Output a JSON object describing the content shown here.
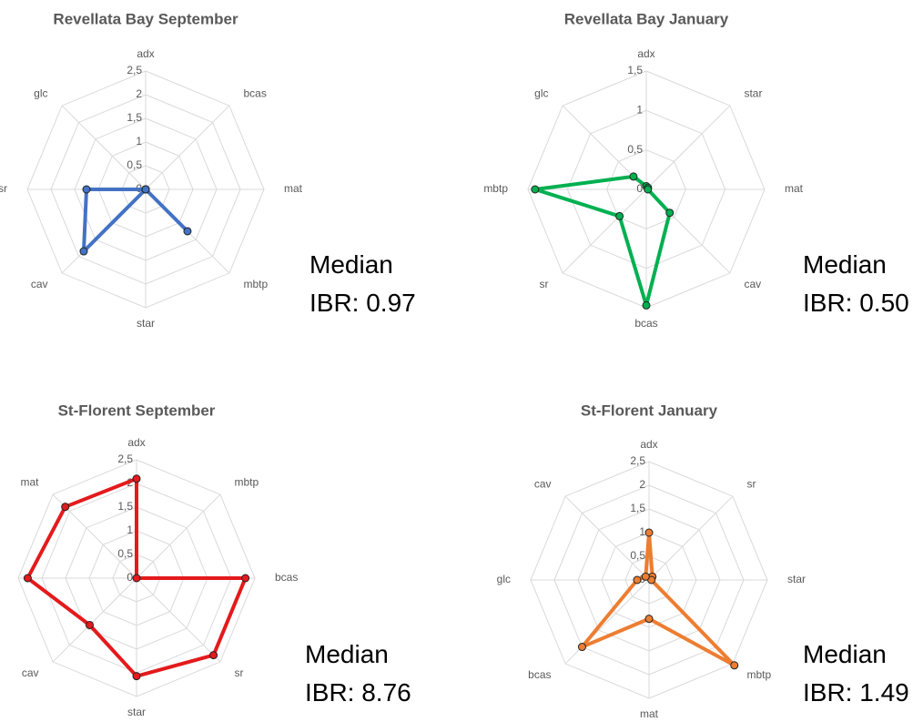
{
  "chart_data": [
    {
      "type": "radar",
      "title": "Revellata Bay September",
      "categories": [
        "adx",
        "bcas",
        "mat",
        "mbtp",
        "star",
        "cav",
        "sr",
        "glc"
      ],
      "values": [
        0,
        0,
        0,
        1.25,
        0,
        1.85,
        1.25,
        0
      ],
      "color": "#4472c4",
      "rlim": [
        0,
        2.5
      ],
      "rticks": [
        0,
        {
          "value": 0.5,
          "label": "0,5"
        },
        1,
        {
          "value": 1.5,
          "label": "1,5"
        },
        2,
        {
          "value": 2.5,
          "label": "2,5"
        }
      ],
      "grid": true,
      "annotation": [
        "Median",
        "IBR: 0.97"
      ]
    },
    {
      "type": "radar",
      "title": "Revellata Bay January",
      "categories": [
        "adx",
        "star",
        "mat",
        "cav",
        "bcas",
        "sr",
        "mbtp",
        "glc"
      ],
      "values": [
        0.04,
        0.03,
        0.02,
        0.42,
        1.47,
        0.48,
        1.41,
        0.23
      ],
      "color": "#00b050",
      "rlim": [
        0,
        1.5
      ],
      "rticks": [
        0,
        {
          "value": 0.5,
          "label": "0,5"
        },
        1,
        {
          "value": 1.5,
          "label": "1,5"
        }
      ],
      "grid": true,
      "annotation": [
        "Median",
        "IBR: 0.50"
      ]
    },
    {
      "type": "radar",
      "title": "St-Florent September",
      "categories": [
        "adx",
        "mbtp",
        "bcas",
        "sr",
        "star",
        "cav",
        "glc",
        "mat"
      ],
      "values": [
        2.1,
        0,
        2.3,
        2.3,
        2.07,
        1.4,
        2.3,
        2.13
      ],
      "color": "#e41a1c",
      "rlim": [
        0,
        2.5
      ],
      "rticks": [
        0,
        {
          "value": 0.5,
          "label": "0,5"
        },
        1,
        {
          "value": 1.5,
          "label": "1,5"
        },
        2,
        {
          "value": 2.5,
          "label": "2,5"
        }
      ],
      "grid": true,
      "annotation": [
        "Median",
        "IBR: 8.76"
      ]
    },
    {
      "type": "radar",
      "title": "St-Florent January",
      "categories": [
        "adx",
        "sr",
        "star",
        "mbtp",
        "mat",
        "bcas",
        "glc",
        "cav"
      ],
      "values": [
        1.0,
        0.1,
        0.05,
        2.55,
        0.82,
        2.0,
        0.25,
        0.1
      ],
      "color": "#ed7d31",
      "rlim": [
        0,
        2.5
      ],
      "rticks": [
        0,
        {
          "value": 0.5,
          "label": "0,5"
        },
        1,
        {
          "value": 1.5,
          "label": "1,5"
        },
        2,
        {
          "value": 2.5,
          "label": "2,5"
        }
      ],
      "grid": true,
      "annotation": [
        "Median",
        "IBR: 1.49"
      ]
    }
  ]
}
